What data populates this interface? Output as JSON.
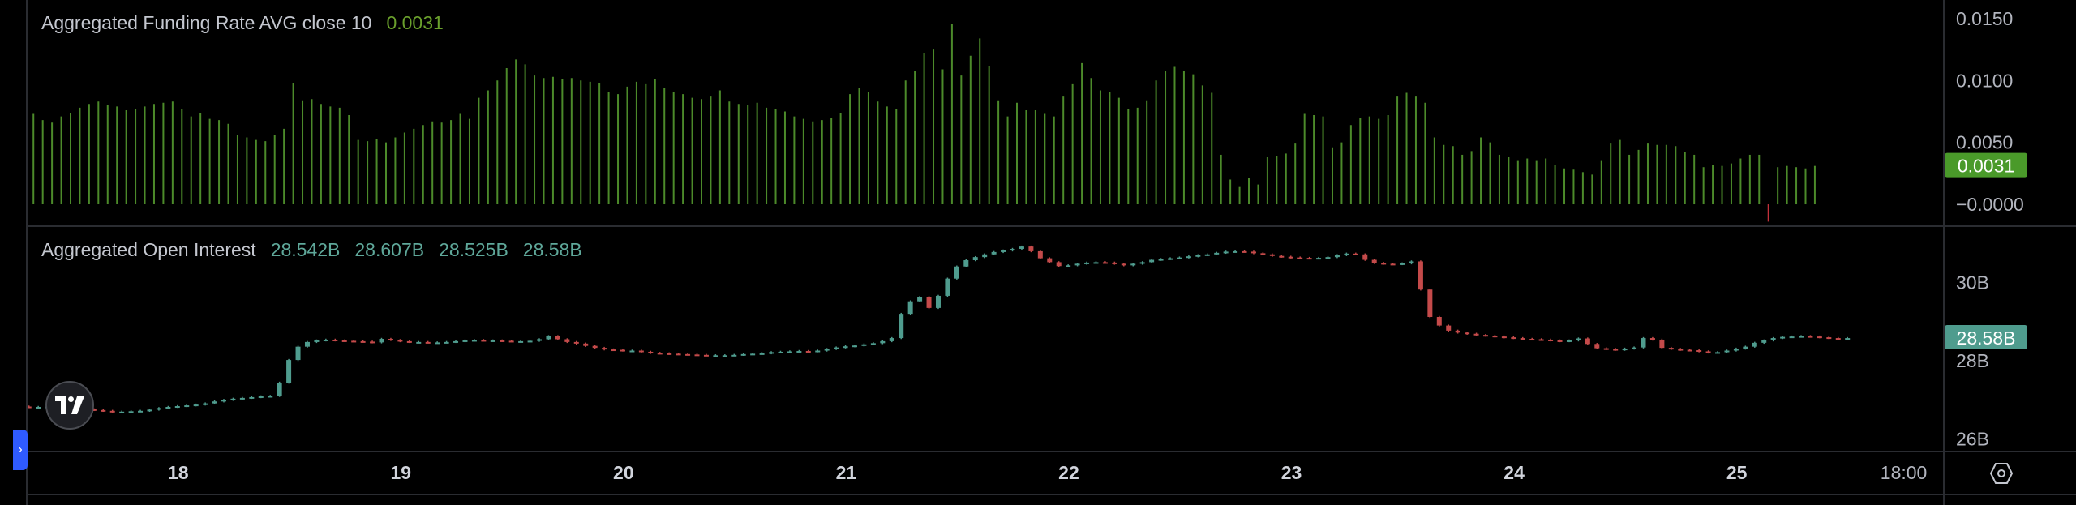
{
  "legends": {
    "funding": {
      "title": "Aggregated Funding Rate AVG close 10",
      "value": "0.0031"
    },
    "oi": {
      "title": "Aggregated Open Interest",
      "open": "28.542B",
      "high": "28.607B",
      "low": "28.525B",
      "close": "28.58B"
    }
  },
  "colors": {
    "up": "#4f9c8e",
    "down": "#c44a4a",
    "funding_bar": "#4c8a2a",
    "funding_neg": "#c2303a",
    "funding_label_bg": "#4a9a2a",
    "oi_label_bg": "#4f9c8e",
    "legend_green": "#6aa02c",
    "legend_teal": "#5fa89a"
  },
  "icons": {
    "logo": "tradingview-logo-icon",
    "scroll": "chevron-right-icon",
    "settings": "settings-hexagon-icon"
  },
  "chart_data": [
    {
      "type": "bar",
      "title": "Aggregated Funding Rate AVG close 10",
      "ylim": [
        -0.0017,
        0.0165
      ],
      "y_ticks": [
        "0.0150",
        "0.0100",
        "0.0050",
        "−0.0000"
      ],
      "y_tick_values": [
        0.015,
        0.01,
        0.005,
        0
      ],
      "last_value_label": "0.0031",
      "x_range": [
        17.32,
        25.93
      ],
      "bar_step": 0.04167,
      "values": [
        0.0073,
        0.0068,
        0.0066,
        0.0071,
        0.0074,
        0.0078,
        0.0081,
        0.0083,
        0.008,
        0.0079,
        0.0076,
        0.0077,
        0.0079,
        0.0081,
        0.0082,
        0.0083,
        0.0077,
        0.0071,
        0.0074,
        0.0069,
        0.0068,
        0.0065,
        0.0056,
        0.0054,
        0.0052,
        0.0051,
        0.0056,
        0.0061,
        0.0098,
        0.0084,
        0.0085,
        0.0081,
        0.0079,
        0.0078,
        0.0072,
        0.0052,
        0.0051,
        0.0053,
        0.005,
        0.0054,
        0.0058,
        0.0061,
        0.0064,
        0.0067,
        0.0066,
        0.0068,
        0.0073,
        0.0069,
        0.0086,
        0.0092,
        0.01,
        0.011,
        0.0117,
        0.0113,
        0.0104,
        0.0102,
        0.0103,
        0.0101,
        0.0102,
        0.01,
        0.0099,
        0.0098,
        0.0091,
        0.0089,
        0.0095,
        0.0099,
        0.0097,
        0.0101,
        0.0094,
        0.0091,
        0.0089,
        0.0086,
        0.0085,
        0.0087,
        0.0092,
        0.0083,
        0.0081,
        0.008,
        0.0082,
        0.0078,
        0.0077,
        0.0075,
        0.0071,
        0.0069,
        0.0067,
        0.0068,
        0.007,
        0.0074,
        0.0089,
        0.0094,
        0.0091,
        0.0083,
        0.0079,
        0.0077,
        0.01,
        0.0108,
        0.0122,
        0.0125,
        0.0109,
        0.0146,
        0.0104,
        0.012,
        0.0134,
        0.0112,
        0.0084,
        0.0071,
        0.0082,
        0.0076,
        0.0076,
        0.0073,
        0.0071,
        0.0087,
        0.0097,
        0.0114,
        0.0102,
        0.0092,
        0.0091,
        0.0086,
        0.0077,
        0.0078,
        0.0084,
        0.01,
        0.0108,
        0.0111,
        0.0108,
        0.0105,
        0.0096,
        0.009,
        0.004,
        0.002,
        0.0014,
        0.0021,
        0.0016,
        0.0038,
        0.0039,
        0.0041,
        0.0049,
        0.0073,
        0.0072,
        0.0071,
        0.0046,
        0.005,
        0.0064,
        0.007,
        0.0071,
        0.0069,
        0.0072,
        0.0087,
        0.009,
        0.0087,
        0.0082,
        0.0054,
        0.0048,
        0.0047,
        0.004,
        0.0043,
        0.0054,
        0.005,
        0.004,
        0.0038,
        0.0035,
        0.0037,
        0.0035,
        0.0037,
        0.0032,
        0.0029,
        0.0028,
        0.0026,
        0.0024,
        0.0035,
        0.0049,
        0.0052,
        0.004,
        0.0044,
        0.0049,
        0.0048,
        0.0048,
        0.0047,
        0.0042,
        0.004,
        0.003,
        0.0032,
        0.0031,
        0.0033,
        0.0037,
        0.004,
        0.004,
        -0.0014,
        0.003,
        0.0031,
        0.003,
        0.0029,
        0.0031
      ]
    },
    {
      "type": "candlestick",
      "title": "Aggregated Open Interest",
      "ylim": [
        25.68,
        31.42
      ],
      "y_ticks": [
        "30B",
        "28B",
        "26B"
      ],
      "y_tick_values": [
        30,
        28,
        26
      ],
      "last_value_label": "28.58B",
      "x_ticks": [
        "18",
        "19",
        "20",
        "21",
        "22",
        "23",
        "24",
        "25",
        "18:00"
      ],
      "x_tick_values": [
        18,
        19,
        20,
        21,
        22,
        23,
        24,
        25,
        25.75
      ],
      "x_range": [
        17.32,
        25.93
      ],
      "candle_step": 0.04167,
      "first_candle_x": 17.33,
      "closes": [
        26.82,
        26.82,
        26.83,
        26.82,
        26.8,
        26.78,
        26.76,
        26.74,
        26.72,
        26.7,
        26.7,
        26.71,
        26.72,
        26.75,
        26.79,
        26.82,
        26.84,
        26.86,
        26.88,
        26.91,
        26.96,
        27.0,
        27.03,
        27.05,
        27.07,
        27.09,
        27.1,
        27.44,
        28.02,
        28.36,
        28.48,
        28.52,
        28.54,
        28.52,
        28.51,
        28.5,
        28.49,
        28.47,
        28.56,
        28.53,
        28.5,
        28.48,
        28.48,
        28.47,
        28.47,
        28.48,
        28.5,
        28.52,
        28.53,
        28.52,
        28.52,
        28.51,
        28.5,
        28.5,
        28.51,
        28.55,
        28.63,
        28.55,
        28.48,
        28.44,
        28.38,
        28.33,
        28.29,
        28.28,
        28.26,
        28.26,
        28.23,
        28.2,
        28.19,
        28.18,
        28.17,
        28.16,
        28.15,
        28.14,
        28.14,
        28.14,
        28.15,
        28.17,
        28.18,
        28.19,
        28.22,
        28.23,
        28.24,
        28.25,
        28.24,
        28.26,
        28.3,
        28.34,
        28.37,
        28.39,
        28.42,
        28.45,
        28.5,
        28.58,
        29.2,
        29.52,
        29.63,
        29.35,
        29.66,
        30.1,
        30.41,
        30.57,
        30.65,
        30.72,
        30.78,
        30.82,
        30.86,
        30.92,
        30.8,
        30.62,
        30.52,
        30.42,
        30.44,
        30.48,
        30.51,
        30.52,
        30.51,
        30.48,
        30.44,
        30.48,
        30.52,
        30.58,
        30.6,
        30.62,
        30.64,
        30.67,
        30.7,
        30.72,
        30.76,
        30.79,
        30.8,
        30.79,
        30.75,
        30.72,
        30.68,
        30.66,
        30.64,
        30.63,
        30.62,
        30.63,
        30.65,
        30.7,
        30.74,
        30.72,
        30.58,
        30.5,
        30.48,
        30.47,
        30.49,
        30.54,
        29.82,
        29.12,
        28.9,
        28.77,
        28.72,
        28.69,
        28.66,
        28.64,
        28.62,
        28.6,
        28.58,
        28.56,
        28.55,
        28.54,
        28.52,
        28.5,
        28.52,
        28.57,
        28.43,
        28.32,
        28.3,
        28.28,
        28.31,
        28.34,
        28.58,
        28.54,
        28.33,
        28.3,
        28.28,
        28.27,
        28.24,
        28.21,
        28.22,
        28.26,
        28.31,
        28.36,
        28.46,
        28.52,
        28.58,
        28.61,
        28.62,
        28.63,
        28.62,
        28.6,
        28.58,
        28.56,
        28.58
      ]
    }
  ]
}
